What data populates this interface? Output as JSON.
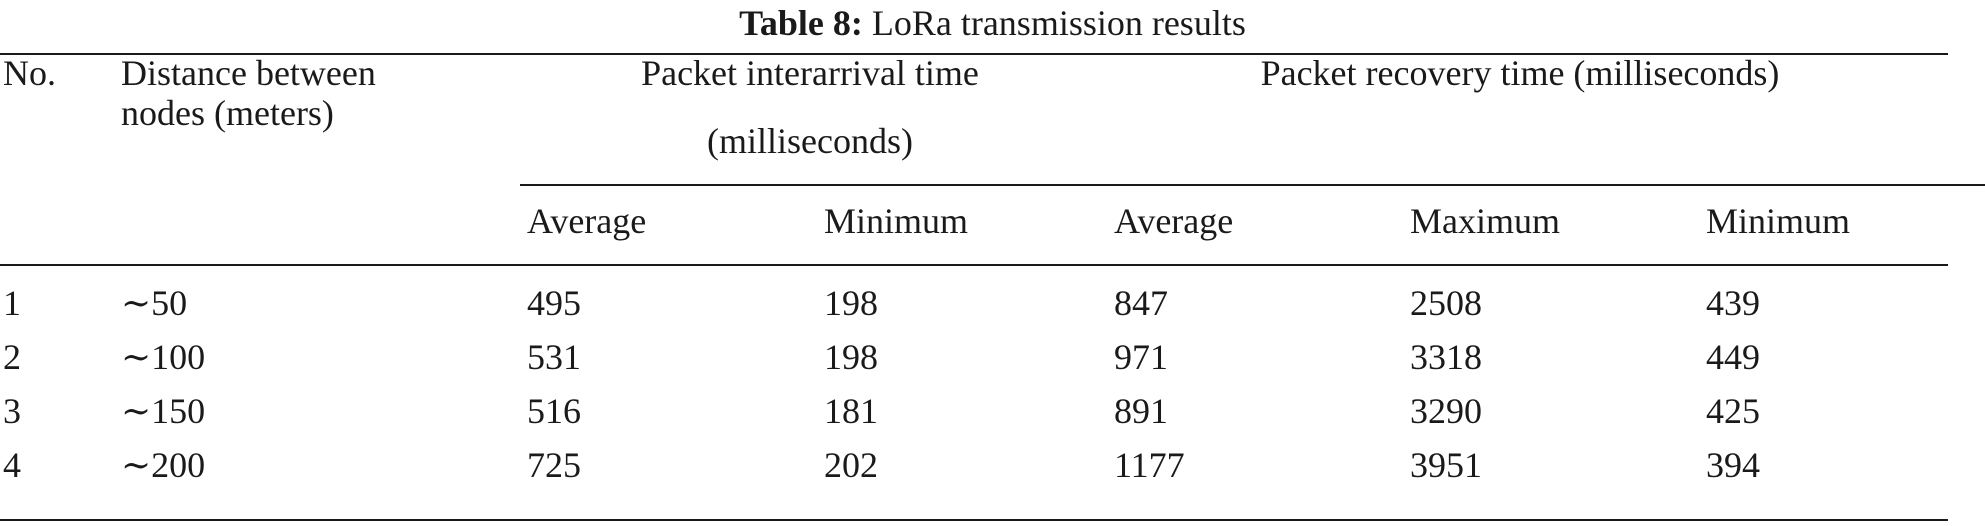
{
  "caption": {
    "label": "Table 8:",
    "title": "LoRa transmission results"
  },
  "header": {
    "no": "No.",
    "distance_line1": "Distance between",
    "distance_line2": "nodes (meters)",
    "interarrival_line1": "Packet interarrival time",
    "interarrival_line2": "(milliseconds)",
    "recovery": "Packet recovery time (milliseconds)",
    "sub": [
      "Average",
      "Minimum",
      "Average",
      "Maximum",
      "Minimum"
    ]
  },
  "rows": [
    [
      "1",
      "∼50",
      "495",
      "198",
      "847",
      "2508",
      "439"
    ],
    [
      "2",
      "∼100",
      "531",
      "198",
      "971",
      "3318",
      "449"
    ],
    [
      "3",
      "∼150",
      "516",
      "181",
      "891",
      "3290",
      "425"
    ],
    [
      "4",
      "∼200",
      "725",
      "202",
      "1177",
      "3951",
      "394"
    ]
  ]
}
